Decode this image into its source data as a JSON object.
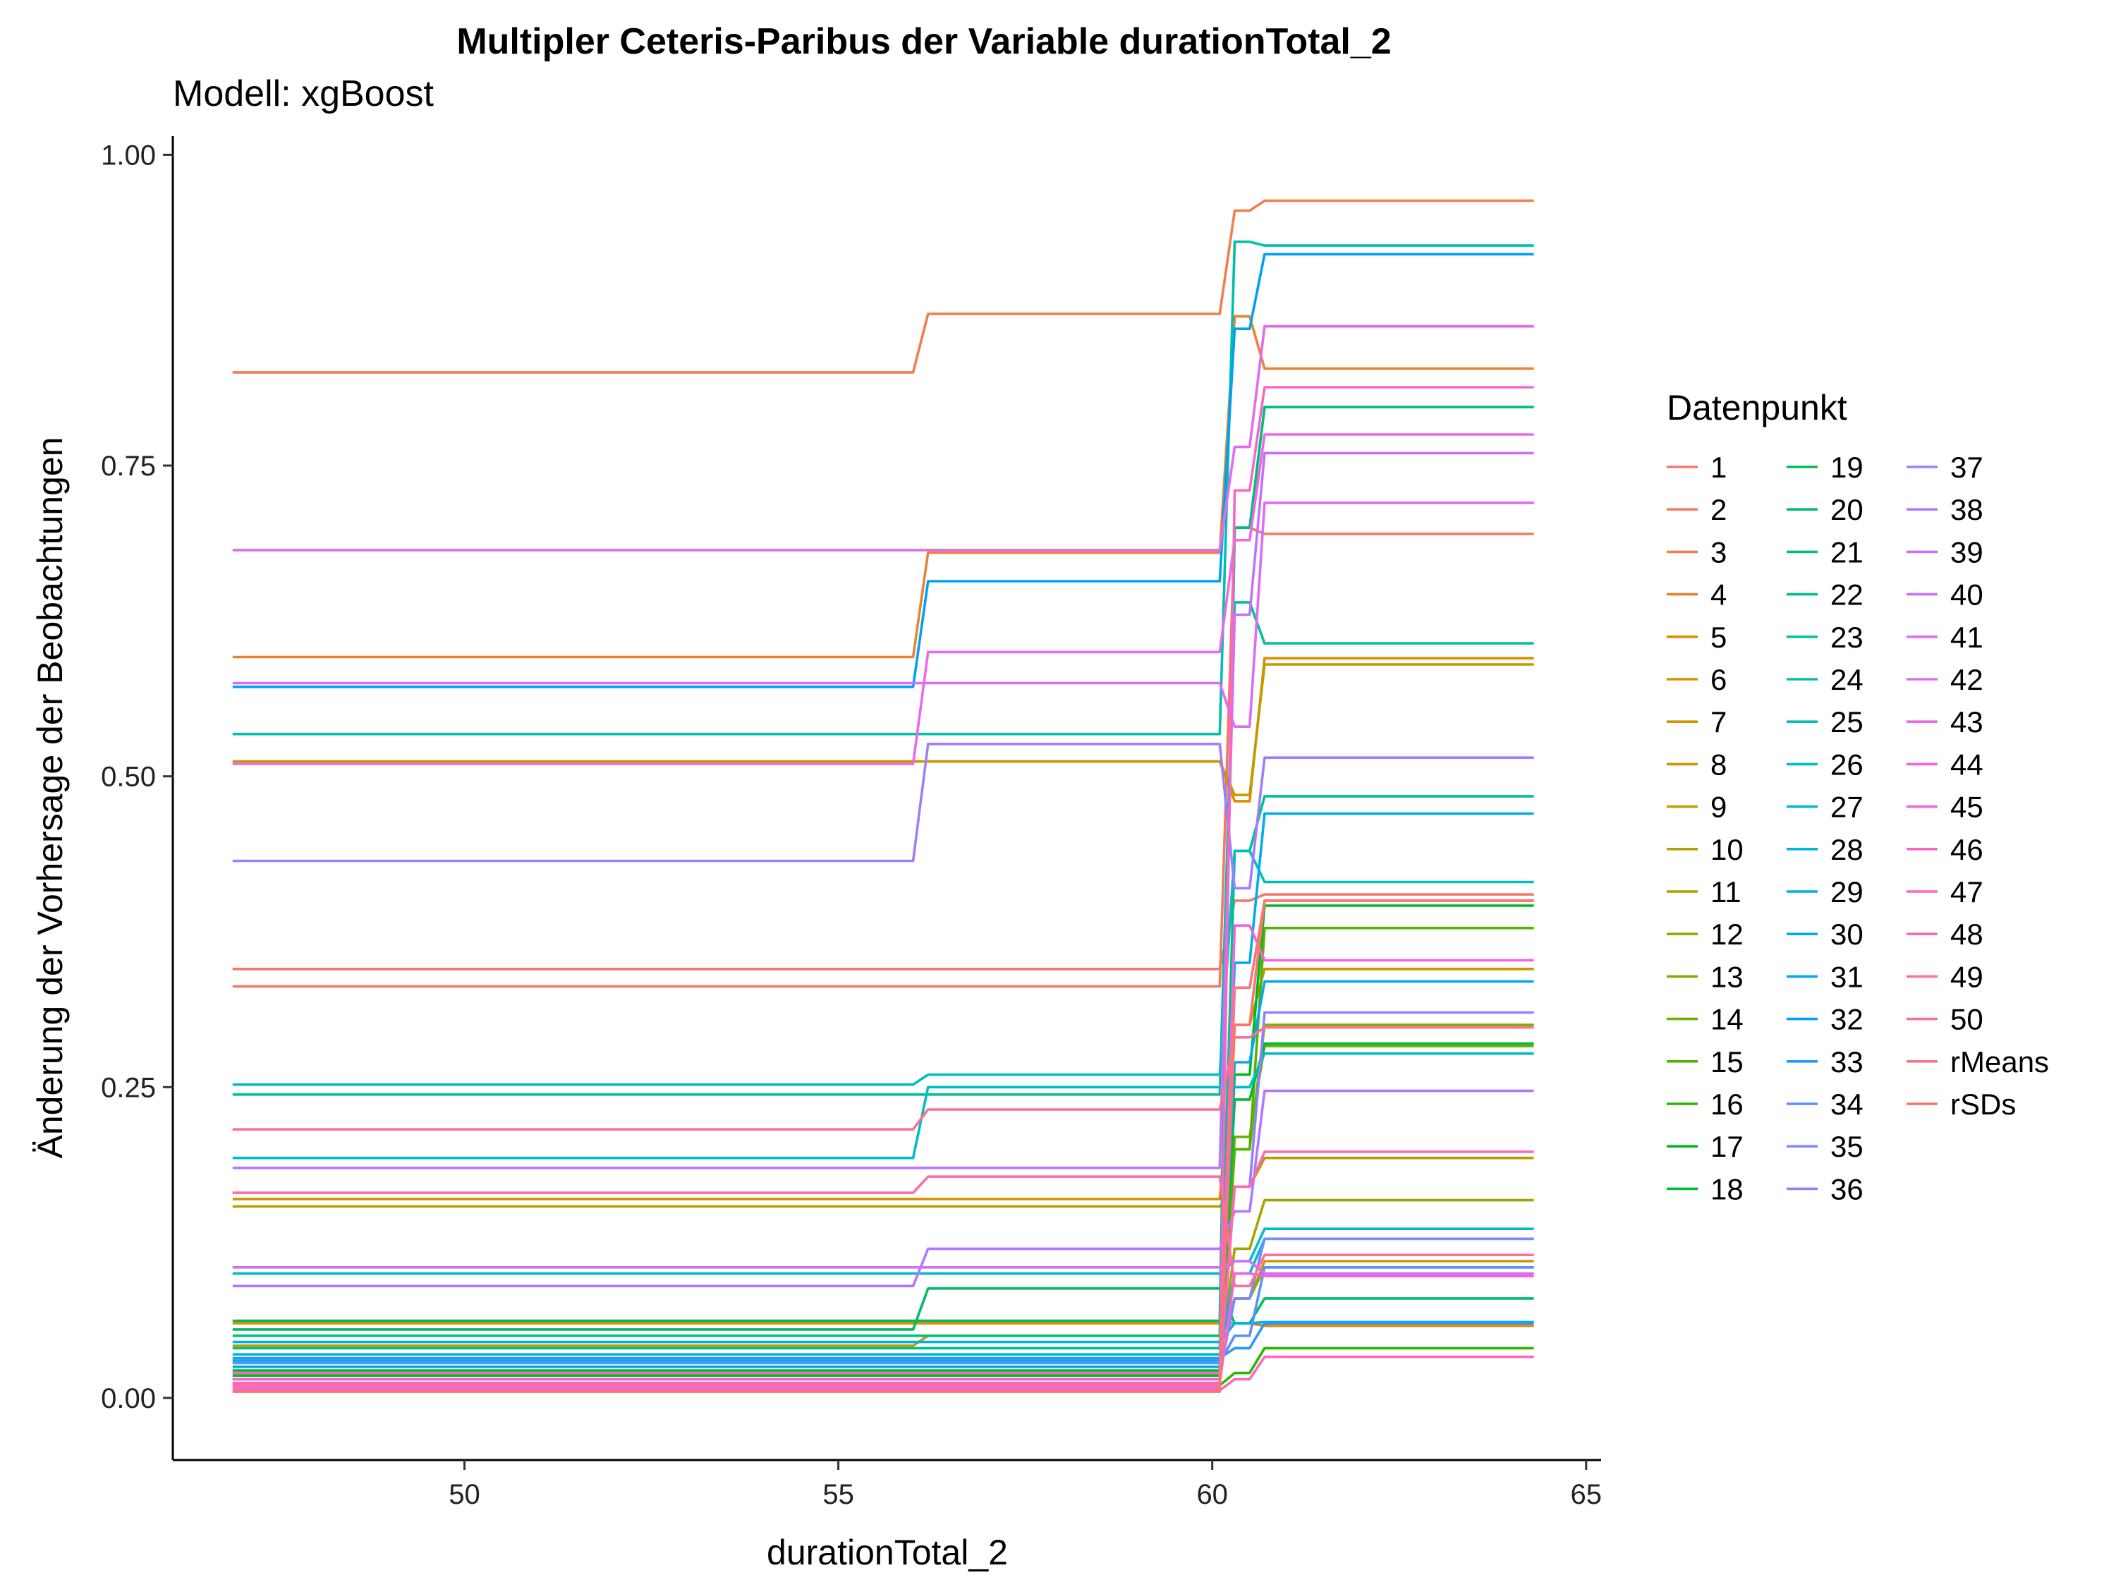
{
  "chart_data": {
    "type": "line",
    "title": "Multipler Ceteris-Paribus der Variable durationTotal_2",
    "subtitle": "Modell: xgBoost",
    "xlabel": "durationTotal_2",
    "ylabel": "Änderung der Vorhersage der Beobachtungen",
    "xlim": [
      46.1,
      65.2
    ],
    "ylim": [
      -0.05,
      1.015
    ],
    "x_ticks": [
      50,
      55,
      60,
      65
    ],
    "x_tick_labels": [
      "50",
      "55",
      "60",
      "65"
    ],
    "y_ticks": [
      0,
      0.25,
      0.5,
      0.75,
      1
    ],
    "y_tick_labels": [
      "0.00",
      "0.25",
      "0.50",
      "0.75",
      "1.00"
    ],
    "grid": false,
    "legend_title": "Datenpunkt",
    "legend_position": "right",
    "x": [
      46.9,
      56.0,
      56.2,
      60.1,
      60.3,
      60.5,
      60.7,
      64.3
    ],
    "series": [
      {
        "name": "1",
        "color": "#F8766D",
        "values": [
          0.345,
          0.345,
          0.345,
          0.345,
          0.4,
          0.4,
          0.405,
          0.405
        ]
      },
      {
        "name": "2",
        "color": "#F47A5E",
        "values": [
          0.331,
          0.331,
          0.331,
          0.331,
          0.7,
          0.7,
          0.695,
          0.695
        ]
      },
      {
        "name": "3",
        "color": "#EF7F4F",
        "values": [
          0.825,
          0.825,
          0.872,
          0.872,
          0.955,
          0.955,
          0.963,
          0.963
        ]
      },
      {
        "name": "4",
        "color": "#EA8331",
        "values": [
          0.596,
          0.596,
          0.68,
          0.68,
          0.87,
          0.87,
          0.828,
          0.828
        ]
      },
      {
        "name": "5",
        "color": "#E38900",
        "values": [
          0.06,
          0.06,
          0.06,
          0.06,
          0.06,
          0.06,
          0.058,
          0.058
        ]
      },
      {
        "name": "6",
        "color": "#DC8D00",
        "values": [
          0.512,
          0.512,
          0.512,
          0.512,
          0.48,
          0.48,
          0.595,
          0.595
        ]
      },
      {
        "name": "7",
        "color": "#D39200",
        "values": [
          0.16,
          0.16,
          0.16,
          0.16,
          0.3,
          0.3,
          0.345,
          0.345
        ]
      },
      {
        "name": "8",
        "color": "#C99800",
        "values": [
          0.042,
          0.042,
          0.05,
          0.05,
          0.08,
          0.08,
          0.11,
          0.11
        ]
      },
      {
        "name": "9",
        "color": "#BF9C00",
        "values": [
          0.512,
          0.512,
          0.512,
          0.512,
          0.485,
          0.485,
          0.59,
          0.59
        ]
      },
      {
        "name": "10",
        "color": "#B3A000",
        "values": [
          0.154,
          0.154,
          0.154,
          0.154,
          0.17,
          0.17,
          0.193,
          0.193
        ]
      },
      {
        "name": "11",
        "color": "#A3A500",
        "values": [
          0.03,
          0.03,
          0.03,
          0.03,
          0.12,
          0.12,
          0.159,
          0.159
        ]
      },
      {
        "name": "12",
        "color": "#93AA00",
        "values": [
          0.02,
          0.02,
          0.02,
          0.02,
          0.08,
          0.08,
          0.105,
          0.105
        ]
      },
      {
        "name": "13",
        "color": "#7FAE00",
        "values": [
          0.015,
          0.015,
          0.015,
          0.015,
          0.2,
          0.2,
          0.3,
          0.3
        ]
      },
      {
        "name": "14",
        "color": "#6BB100",
        "values": [
          0.01,
          0.01,
          0.01,
          0.01,
          0.21,
          0.21,
          0.283,
          0.283
        ]
      },
      {
        "name": "15",
        "color": "#53B400",
        "values": [
          0.012,
          0.012,
          0.012,
          0.012,
          0.2,
          0.2,
          0.378,
          0.378
        ]
      },
      {
        "name": "16",
        "color": "#2BB600",
        "values": [
          0.01,
          0.01,
          0.01,
          0.01,
          0.02,
          0.02,
          0.04,
          0.04
        ]
      },
      {
        "name": "17",
        "color": "#00B81F",
        "values": [
          0.022,
          0.022,
          0.022,
          0.022,
          0.26,
          0.26,
          0.396,
          0.396
        ]
      },
      {
        "name": "18",
        "color": "#00BA38",
        "values": [
          0.018,
          0.018,
          0.018,
          0.018,
          0.24,
          0.24,
          0.285,
          0.285
        ]
      },
      {
        "name": "19",
        "color": "#00BC53",
        "values": [
          0.062,
          0.062,
          0.062,
          0.062,
          0.7,
          0.7,
          0.797,
          0.797
        ]
      },
      {
        "name": "20",
        "color": "#00BD67",
        "values": [
          0.055,
          0.055,
          0.088,
          0.088,
          0.06,
          0.06,
          0.08,
          0.08
        ]
      },
      {
        "name": "21",
        "color": "#00BF7A",
        "values": [
          0.05,
          0.05,
          0.05,
          0.05,
          0.7,
          0.7,
          0.797,
          0.797
        ]
      },
      {
        "name": "22",
        "color": "#00C08B",
        "values": [
          0.04,
          0.04,
          0.04,
          0.04,
          0.44,
          0.44,
          0.484,
          0.484
        ]
      },
      {
        "name": "23",
        "color": "#00C19C",
        "values": [
          0.244,
          0.244,
          0.244,
          0.244,
          0.64,
          0.64,
          0.607,
          0.607
        ]
      },
      {
        "name": "24",
        "color": "#00C0AB",
        "values": [
          0.534,
          0.534,
          0.534,
          0.534,
          0.93,
          0.93,
          0.927,
          0.927
        ]
      },
      {
        "name": "25",
        "color": "#00BFB9",
        "values": [
          0.252,
          0.252,
          0.26,
          0.26,
          0.44,
          0.44,
          0.415,
          0.415
        ]
      },
      {
        "name": "26",
        "color": "#00BDC5",
        "values": [
          0.193,
          0.193,
          0.25,
          0.25,
          0.25,
          0.25,
          0.277,
          0.277
        ]
      },
      {
        "name": "27",
        "color": "#00BAD0",
        "values": [
          0.1,
          0.1,
          0.1,
          0.1,
          0.11,
          0.11,
          0.136,
          0.136
        ]
      },
      {
        "name": "28",
        "color": "#00B6DA",
        "values": [
          0.035,
          0.035,
          0.035,
          0.035,
          0.1,
          0.1,
          0.128,
          0.128
        ]
      },
      {
        "name": "29",
        "color": "#00B2E2",
        "values": [
          0.045,
          0.045,
          0.045,
          0.045,
          0.06,
          0.06,
          0.061,
          0.061
        ]
      },
      {
        "name": "30",
        "color": "#00ACEA",
        "values": [
          0.03,
          0.03,
          0.03,
          0.03,
          0.35,
          0.35,
          0.47,
          0.47
        ]
      },
      {
        "name": "31",
        "color": "#00A6F1",
        "values": [
          0.025,
          0.025,
          0.025,
          0.025,
          0.27,
          0.27,
          0.335,
          0.335
        ]
      },
      {
        "name": "32",
        "color": "#00A0F6",
        "values": [
          0.572,
          0.572,
          0.657,
          0.657,
          0.86,
          0.86,
          0.92,
          0.92
        ]
      },
      {
        "name": "33",
        "color": "#2798FA",
        "values": [
          0.032,
          0.032,
          0.032,
          0.032,
          0.04,
          0.04,
          0.06,
          0.06
        ]
      },
      {
        "name": "34",
        "color": "#5C91FC",
        "values": [
          0.028,
          0.028,
          0.028,
          0.028,
          0.05,
          0.05,
          0.105,
          0.105
        ]
      },
      {
        "name": "35",
        "color": "#7B8AFF",
        "values": [
          0.02,
          0.02,
          0.02,
          0.02,
          0.08,
          0.08,
          0.128,
          0.128
        ]
      },
      {
        "name": "36",
        "color": "#8F82FF",
        "values": [
          0.015,
          0.015,
          0.015,
          0.015,
          0.17,
          0.17,
          0.31,
          0.31
        ]
      },
      {
        "name": "37",
        "color": "#A27CFF",
        "values": [
          0.432,
          0.432,
          0.526,
          0.526,
          0.41,
          0.41,
          0.515,
          0.515
        ]
      },
      {
        "name": "38",
        "color": "#B177FF",
        "values": [
          0.09,
          0.09,
          0.12,
          0.12,
          0.15,
          0.15,
          0.247,
          0.247
        ]
      },
      {
        "name": "39",
        "color": "#C073FF",
        "values": [
          0.185,
          0.185,
          0.185,
          0.185,
          0.63,
          0.63,
          0.76,
          0.76
        ]
      },
      {
        "name": "40",
        "color": "#CF6FFB",
        "values": [
          0.105,
          0.105,
          0.105,
          0.105,
          0.11,
          0.11,
          0.1,
          0.1
        ]
      },
      {
        "name": "41",
        "color": "#DA6CF5",
        "values": [
          0.575,
          0.575,
          0.575,
          0.575,
          0.54,
          0.54,
          0.72,
          0.72
        ]
      },
      {
        "name": "42",
        "color": "#E36AEE",
        "values": [
          0.682,
          0.682,
          0.682,
          0.682,
          0.765,
          0.765,
          0.862,
          0.862
        ]
      },
      {
        "name": "43",
        "color": "#EB69E6",
        "values": [
          0.51,
          0.51,
          0.6,
          0.6,
          0.69,
          0.69,
          0.775,
          0.775
        ]
      },
      {
        "name": "44",
        "color": "#F066DE",
        "values": [
          0.008,
          0.008,
          0.008,
          0.008,
          0.38,
          0.38,
          0.352,
          0.352
        ]
      },
      {
        "name": "45",
        "color": "#F564D4",
        "values": [
          0.012,
          0.012,
          0.012,
          0.012,
          0.1,
          0.1,
          0.098,
          0.098
        ]
      },
      {
        "name": "46",
        "color": "#F866C9",
        "values": [
          0.015,
          0.015,
          0.015,
          0.015,
          0.73,
          0.73,
          0.813,
          0.813
        ]
      },
      {
        "name": "47",
        "color": "#FB67BC",
        "values": [
          0.006,
          0.006,
          0.006,
          0.006,
          0.015,
          0.015,
          0.033,
          0.033
        ]
      },
      {
        "name": "48",
        "color": "#FC6AAF",
        "values": [
          0.02,
          0.02,
          0.02,
          0.02,
          0.17,
          0.17,
          0.198,
          0.198
        ]
      },
      {
        "name": "49",
        "color": "#FC6FA1",
        "values": [
          0.165,
          0.165,
          0.178,
          0.178,
          0.09,
          0.09,
          0.115,
          0.115
        ]
      },
      {
        "name": "50",
        "color": "#FB7292",
        "values": [
          0.216,
          0.216,
          0.232,
          0.232,
          0.29,
          0.29,
          0.298,
          0.298
        ]
      },
      {
        "name": "rMeans",
        "color": "#FA7583",
        "values": [
          0.01,
          0.01,
          0.01,
          0.01,
          0.33,
          0.33,
          0.4,
          0.4
        ]
      },
      {
        "name": "rSDs",
        "color": "#F8766D",
        "values": [
          0.005,
          0.005,
          0.005,
          0.005,
          0.3,
          0.3,
          0.4,
          0.4
        ]
      }
    ]
  }
}
